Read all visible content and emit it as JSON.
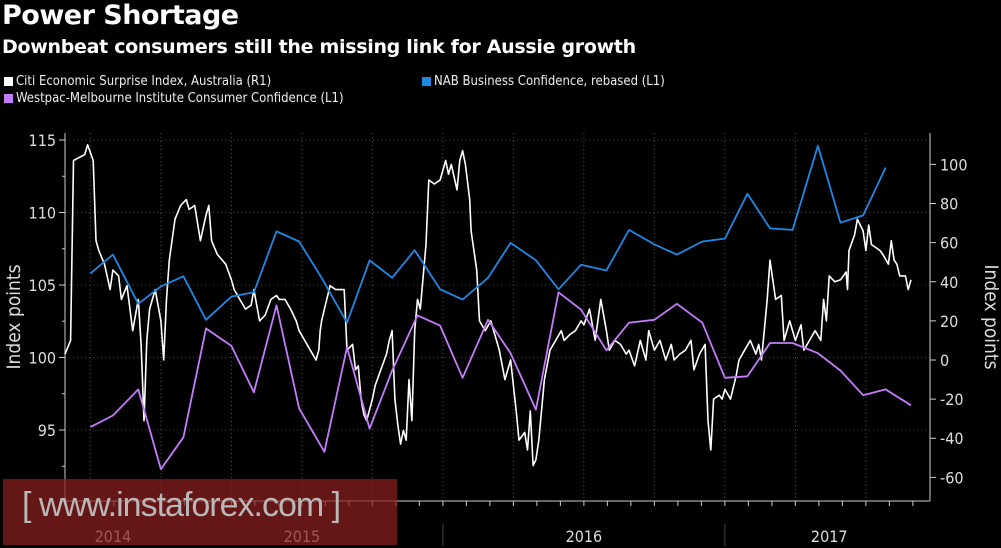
{
  "chart_data": {
    "type": "line",
    "title": "Power Shortage",
    "subtitle": "Downbeat consumers still the missing link for Aussie growth",
    "ylabel_left": "Index points",
    "ylabel_right": "Index points",
    "ylim_left": [
      90,
      115.5
    ],
    "ylim_right": [
      -70,
      115
    ],
    "yticks_left": [
      "115",
      "110",
      "105",
      "100",
      "95"
    ],
    "yticks_left_values": [
      115,
      110,
      105,
      100,
      95
    ],
    "yticks_right": [
      "100",
      "80",
      "60",
      "40",
      "20",
      "0",
      "-20",
      "-40",
      "-60"
    ],
    "yticks_right_values": [
      100,
      80,
      60,
      40,
      20,
      0,
      -20,
      -40,
      -60
    ],
    "xlim": [
      2014.66,
      2017.72
    ],
    "xticks": [
      "2014",
      "2015",
      "2016",
      "2017"
    ],
    "xtick_positions": [
      2014.83,
      2015.5,
      2016.5,
      2017.37
    ],
    "x_separators": [
      2016.0,
      2017.0
    ],
    "grid": true,
    "legend_position": "top",
    "colors": {
      "citi": "#ffffff",
      "nab": "#1e88e5",
      "westpac": "#c37dfa"
    },
    "series": [
      {
        "name": "Citi Economic Surprise Index, Australia (R1)",
        "axis": "right",
        "color": "#ffffff",
        "points": [
          [
            2014.66,
            3
          ],
          [
            2014.68,
            10
          ],
          [
            2014.69,
            102
          ],
          [
            2014.73,
            105
          ],
          [
            2014.74,
            110
          ],
          [
            2014.76,
            102
          ],
          [
            2014.77,
            61
          ],
          [
            2014.78,
            56
          ],
          [
            2014.8,
            49
          ],
          [
            2014.82,
            36
          ],
          [
            2014.83,
            46
          ],
          [
            2014.85,
            43
          ],
          [
            2014.86,
            31
          ],
          [
            2014.88,
            38
          ],
          [
            2014.9,
            15
          ],
          [
            2014.92,
            31
          ],
          [
            2014.93,
            8
          ],
          [
            2014.94,
            -31
          ],
          [
            2014.95,
            10
          ],
          [
            2014.96,
            26
          ],
          [
            2014.98,
            36
          ],
          [
            2015.0,
            20
          ],
          [
            2015.01,
            0
          ],
          [
            2015.02,
            31
          ],
          [
            2015.03,
            51
          ],
          [
            2015.05,
            72
          ],
          [
            2015.07,
            79
          ],
          [
            2015.09,
            82
          ],
          [
            2015.1,
            77
          ],
          [
            2015.12,
            79
          ],
          [
            2015.14,
            61
          ],
          [
            2015.16,
            74
          ],
          [
            2015.17,
            79
          ],
          [
            2015.18,
            61
          ],
          [
            2015.2,
            54
          ],
          [
            2015.23,
            49
          ],
          [
            2015.25,
            41
          ],
          [
            2015.26,
            36
          ],
          [
            2015.28,
            31
          ],
          [
            2015.3,
            26
          ],
          [
            2015.32,
            28
          ],
          [
            2015.33,
            36
          ],
          [
            2015.35,
            20
          ],
          [
            2015.37,
            23
          ],
          [
            2015.39,
            31
          ],
          [
            2015.41,
            33
          ],
          [
            2015.42,
            31
          ],
          [
            2015.44,
            31
          ],
          [
            2015.46,
            26
          ],
          [
            2015.48,
            20
          ],
          [
            2015.49,
            15
          ],
          [
            2015.51,
            10
          ],
          [
            2015.53,
            5
          ],
          [
            2015.55,
            0
          ],
          [
            2015.56,
            5
          ],
          [
            2015.565,
            15
          ],
          [
            2015.57,
            20
          ],
          [
            2015.58,
            26
          ],
          [
            2015.6,
            38
          ],
          [
            2015.62,
            36
          ],
          [
            2015.65,
            36
          ],
          [
            2015.66,
            5
          ],
          [
            2015.68,
            8
          ],
          [
            2015.69,
            -5
          ],
          [
            2015.7,
            -3
          ],
          [
            2015.71,
            -20
          ],
          [
            2015.72,
            -28
          ],
          [
            2015.73,
            -31
          ],
          [
            2015.75,
            -20
          ],
          [
            2015.76,
            -13
          ],
          [
            2015.78,
            -5
          ],
          [
            2015.8,
            3
          ],
          [
            2015.81,
            10
          ],
          [
            2015.82,
            15
          ],
          [
            2015.83,
            -20
          ],
          [
            2015.84,
            -33
          ],
          [
            2015.85,
            -43
          ],
          [
            2015.86,
            -36
          ],
          [
            2015.87,
            -41
          ],
          [
            2015.88,
            -10
          ],
          [
            2015.89,
            -31
          ],
          [
            2015.9,
            15
          ],
          [
            2015.91,
            31
          ],
          [
            2015.92,
            26
          ],
          [
            2015.94,
            59
          ],
          [
            2015.95,
            92
          ],
          [
            2015.97,
            90
          ],
          [
            2015.99,
            92
          ],
          [
            2016.01,
            102
          ],
          [
            2016.02,
            95
          ],
          [
            2016.03,
            100
          ],
          [
            2016.05,
            87
          ],
          [
            2016.06,
            102
          ],
          [
            2016.07,
            107
          ],
          [
            2016.08,
            100
          ],
          [
            2016.095,
            82
          ],
          [
            2016.1,
            66
          ],
          [
            2016.12,
            46
          ],
          [
            2016.13,
            20
          ],
          [
            2016.15,
            15
          ],
          [
            2016.17,
            20
          ],
          [
            2016.19,
            10
          ],
          [
            2016.2,
            5
          ],
          [
            2016.22,
            -10
          ],
          [
            2016.24,
            0
          ],
          [
            2016.26,
            -26
          ],
          [
            2016.27,
            -41
          ],
          [
            2016.29,
            -37
          ],
          [
            2016.3,
            -46
          ],
          [
            2016.31,
            -26
          ],
          [
            2016.32,
            -54
          ],
          [
            2016.33,
            -51
          ],
          [
            2016.34,
            -41
          ],
          [
            2016.36,
            -10
          ],
          [
            2016.38,
            5
          ],
          [
            2016.4,
            10
          ],
          [
            2016.42,
            15
          ],
          [
            2016.43,
            10
          ],
          [
            2016.45,
            13
          ],
          [
            2016.47,
            15
          ],
          [
            2016.49,
            20
          ],
          [
            2016.5,
            18
          ],
          [
            2016.52,
            26
          ],
          [
            2016.54,
            10
          ],
          [
            2016.56,
            31
          ],
          [
            2016.58,
            15
          ],
          [
            2016.59,
            5
          ],
          [
            2016.61,
            10
          ],
          [
            2016.63,
            8
          ],
          [
            2016.65,
            3
          ],
          [
            2016.66,
            5
          ],
          [
            2016.68,
            -3
          ],
          [
            2016.7,
            10
          ],
          [
            2016.72,
            0
          ],
          [
            2016.73,
            15
          ],
          [
            2016.75,
            5
          ],
          [
            2016.77,
            10
          ],
          [
            2016.79,
            0
          ],
          [
            2016.81,
            8
          ],
          [
            2016.82,
            0
          ],
          [
            2016.84,
            3
          ],
          [
            2016.86,
            5
          ],
          [
            2016.88,
            10
          ],
          [
            2016.89,
            -5
          ],
          [
            2016.91,
            3
          ],
          [
            2016.93,
            8
          ],
          [
            2016.94,
            -31
          ],
          [
            2016.95,
            -46
          ],
          [
            2016.96,
            -20
          ],
          [
            2016.98,
            -18
          ],
          [
            2016.99,
            -20
          ],
          [
            2017.0,
            -15
          ],
          [
            2017.02,
            -20
          ],
          [
            2017.04,
            -8
          ],
          [
            2017.05,
            0
          ],
          [
            2017.07,
            5
          ],
          [
            2017.09,
            10
          ],
          [
            2017.11,
            3
          ],
          [
            2017.12,
            8
          ],
          [
            2017.13,
            0
          ],
          [
            2017.15,
            31
          ],
          [
            2017.16,
            51
          ],
          [
            2017.18,
            31
          ],
          [
            2017.2,
            33
          ],
          [
            2017.21,
            10
          ],
          [
            2017.23,
            20
          ],
          [
            2017.25,
            10
          ],
          [
            2017.27,
            18
          ],
          [
            2017.28,
            5
          ],
          [
            2017.3,
            10
          ],
          [
            2017.32,
            15
          ],
          [
            2017.34,
            10
          ],
          [
            2017.35,
            31
          ],
          [
            2017.36,
            20
          ],
          [
            2017.37,
            43
          ],
          [
            2017.39,
            40
          ],
          [
            2017.41,
            41
          ],
          [
            2017.43,
            45
          ],
          [
            2017.435,
            36
          ],
          [
            2017.44,
            56
          ],
          [
            2017.46,
            64
          ],
          [
            2017.47,
            72
          ],
          [
            2017.49,
            66
          ],
          [
            2017.5,
            56
          ],
          [
            2017.51,
            69
          ],
          [
            2017.52,
            59
          ],
          [
            2017.54,
            57
          ],
          [
            2017.55,
            56
          ],
          [
            2017.56,
            54
          ],
          [
            2017.58,
            49
          ],
          [
            2017.59,
            61
          ],
          [
            2017.6,
            51
          ],
          [
            2017.61,
            49
          ],
          [
            2017.62,
            43
          ],
          [
            2017.64,
            43
          ],
          [
            2017.65,
            36
          ],
          [
            2017.66,
            41
          ]
        ]
      },
      {
        "name": "NAB Business Confidence, rebased (L1)",
        "axis": "left",
        "color": "#1e88e5",
        "points": [
          [
            2014.75,
            105.8
          ],
          [
            2014.83,
            107.1
          ],
          [
            2014.92,
            103.7
          ],
          [
            2015.0,
            104.9
          ],
          [
            2015.08,
            105.6
          ],
          [
            2015.16,
            102.6
          ],
          [
            2015.25,
            104.2
          ],
          [
            2015.33,
            104.5
          ],
          [
            2015.41,
            108.7
          ],
          [
            2015.49,
            108.0
          ],
          [
            2015.57,
            105.5
          ],
          [
            2015.66,
            102.4
          ],
          [
            2015.74,
            106.7
          ],
          [
            2015.82,
            105.5
          ],
          [
            2015.9,
            107.4
          ],
          [
            2015.99,
            104.7
          ],
          [
            2016.07,
            104.0
          ],
          [
            2016.16,
            105.5
          ],
          [
            2016.24,
            107.9
          ],
          [
            2016.33,
            106.7
          ],
          [
            2016.41,
            104.7
          ],
          [
            2016.49,
            106.4
          ],
          [
            2016.58,
            106.0
          ],
          [
            2016.66,
            108.8
          ],
          [
            2016.75,
            107.8
          ],
          [
            2016.83,
            107.1
          ],
          [
            2016.92,
            108.0
          ],
          [
            2017.0,
            108.2
          ],
          [
            2017.08,
            111.3
          ],
          [
            2017.16,
            108.9
          ],
          [
            2017.24,
            108.8
          ],
          [
            2017.33,
            114.6
          ],
          [
            2017.41,
            109.3
          ],
          [
            2017.49,
            109.8
          ],
          [
            2017.57,
            113.1
          ]
        ]
      },
      {
        "name": "Westpac-Melbourne Institute Consumer Confidence (L1)",
        "axis": "left",
        "color": "#c37dfa",
        "points": [
          [
            2014.75,
            95.2
          ],
          [
            2014.83,
            96.0
          ],
          [
            2014.92,
            97.8
          ],
          [
            2015.0,
            92.3
          ],
          [
            2015.08,
            94.5
          ],
          [
            2015.16,
            102.0
          ],
          [
            2015.25,
            100.8
          ],
          [
            2015.33,
            97.6
          ],
          [
            2015.41,
            103.6
          ],
          [
            2015.49,
            96.5
          ],
          [
            2015.58,
            93.5
          ],
          [
            2015.66,
            100.7
          ],
          [
            2015.74,
            95.1
          ],
          [
            2015.82,
            99.1
          ],
          [
            2015.91,
            102.9
          ],
          [
            2015.99,
            102.2
          ],
          [
            2016.07,
            98.6
          ],
          [
            2016.16,
            102.6
          ],
          [
            2016.24,
            100.3
          ],
          [
            2016.33,
            96.4
          ],
          [
            2016.41,
            104.5
          ],
          [
            2016.49,
            103.3
          ],
          [
            2016.58,
            100.5
          ],
          [
            2016.66,
            102.4
          ],
          [
            2016.75,
            102.6
          ],
          [
            2016.83,
            103.7
          ],
          [
            2016.92,
            102.4
          ],
          [
            2017.0,
            98.6
          ],
          [
            2017.08,
            98.7
          ],
          [
            2017.16,
            101.0
          ],
          [
            2017.24,
            101.0
          ],
          [
            2017.33,
            100.3
          ],
          [
            2017.41,
            99.1
          ],
          [
            2017.49,
            97.4
          ],
          [
            2017.57,
            97.8
          ],
          [
            2017.66,
            96.7
          ]
        ]
      }
    ]
  },
  "legend": {
    "citi": "Citi Economic Surprise Index, Australia (R1)",
    "nab": "NAB Business Confidence, rebased (L1)",
    "westpac": "Westpac-Melbourne Institute Consumer Confidence (L1)"
  },
  "watermark": "[ www.instaforex.com ]"
}
